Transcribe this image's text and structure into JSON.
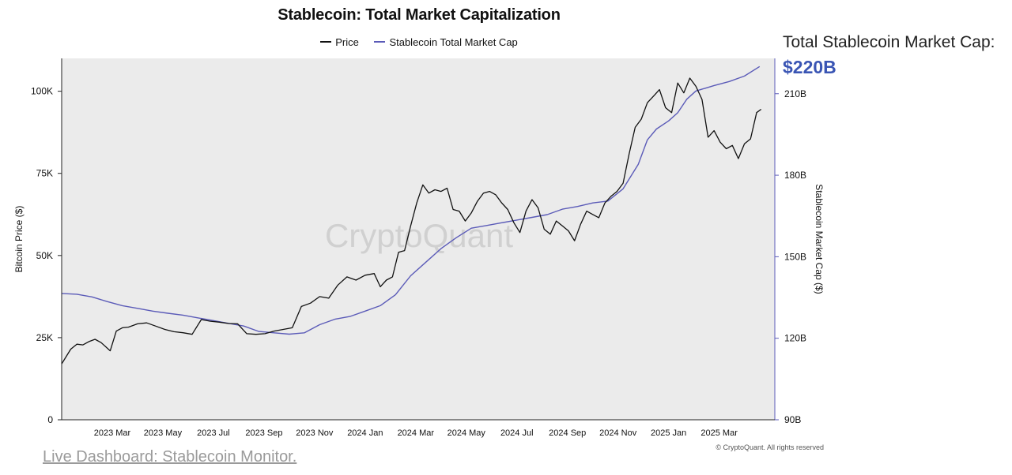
{
  "header": {
    "title": "Stablecoin: Total Market Capitalization",
    "legend": [
      {
        "label": "Price",
        "color": "#111111"
      },
      {
        "label": "Stablecoin Total Market Cap",
        "color": "#5b5bb8"
      }
    ]
  },
  "callout": {
    "label": "Total Stablecoin Market Cap:",
    "value": "$220B",
    "color": "#3a55b4"
  },
  "watermark": "CryptoQuant",
  "copyright": "© CryptoQuant. All rights reserved",
  "footer_link": "Live Dashboard: Stablecoin Monitor.",
  "chart_data": {
    "type": "line",
    "xlim": [
      2023.0,
      2025.35
    ],
    "x_ticks": [
      {
        "value": 2023.1667,
        "label": "2023 Mar"
      },
      {
        "value": 2023.3333,
        "label": "2023 May"
      },
      {
        "value": 2023.5,
        "label": "2023 Jul"
      },
      {
        "value": 2023.6667,
        "label": "2023 Sep"
      },
      {
        "value": 2023.8333,
        "label": "2023 Nov"
      },
      {
        "value": 2024.0,
        "label": "2024 Jan"
      },
      {
        "value": 2024.1667,
        "label": "2024 Mar"
      },
      {
        "value": 2024.3333,
        "label": "2024 May"
      },
      {
        "value": 2024.5,
        "label": "2024 Jul"
      },
      {
        "value": 2024.6667,
        "label": "2024 Sep"
      },
      {
        "value": 2024.8333,
        "label": "2024 Nov"
      },
      {
        "value": 2025.0,
        "label": "2025 Jan"
      },
      {
        "value": 2025.1667,
        "label": "2025 Mar"
      }
    ],
    "y_left": {
      "label": "Bitcoin Price ($)",
      "ylim": [
        0,
        110000
      ],
      "ticks": [
        {
          "value": 0,
          "label": "0"
        },
        {
          "value": 25000,
          "label": "25K"
        },
        {
          "value": 50000,
          "label": "50K"
        },
        {
          "value": 75000,
          "label": "75K"
        },
        {
          "value": 100000,
          "label": "100K"
        }
      ]
    },
    "y_right": {
      "label": "Stablecoin Market Cap ($)",
      "ylim": [
        90,
        223
      ],
      "ticks": [
        {
          "value": 90,
          "label": "90B"
        },
        {
          "value": 120,
          "label": "120B"
        },
        {
          "value": 150,
          "label": "150B"
        },
        {
          "value": 180,
          "label": "180B"
        },
        {
          "value": 210,
          "label": "210B"
        }
      ]
    },
    "series": [
      {
        "name": "Price",
        "axis": "left",
        "color": "#111111",
        "points": [
          [
            2023.0,
            17000
          ],
          [
            2023.01,
            18500
          ],
          [
            2023.03,
            21500
          ],
          [
            2023.05,
            23000
          ],
          [
            2023.07,
            22800
          ],
          [
            2023.09,
            23800
          ],
          [
            2023.11,
            24500
          ],
          [
            2023.13,
            23500
          ],
          [
            2023.16,
            21000
          ],
          [
            2023.18,
            27000
          ],
          [
            2023.2,
            28000
          ],
          [
            2023.22,
            28200
          ],
          [
            2023.25,
            29200
          ],
          [
            2023.28,
            29500
          ],
          [
            2023.31,
            28500
          ],
          [
            2023.34,
            27500
          ],
          [
            2023.37,
            26800
          ],
          [
            2023.4,
            26500
          ],
          [
            2023.43,
            26000
          ],
          [
            2023.46,
            30500
          ],
          [
            2023.49,
            30000
          ],
          [
            2023.52,
            29700
          ],
          [
            2023.55,
            29300
          ],
          [
            2023.58,
            29200
          ],
          [
            2023.61,
            26200
          ],
          [
            2023.64,
            26000
          ],
          [
            2023.67,
            26200
          ],
          [
            2023.7,
            27000
          ],
          [
            2023.73,
            27500
          ],
          [
            2023.76,
            28000
          ],
          [
            2023.79,
            34500
          ],
          [
            2023.82,
            35500
          ],
          [
            2023.85,
            37500
          ],
          [
            2023.88,
            37000
          ],
          [
            2023.91,
            41000
          ],
          [
            2023.94,
            43500
          ],
          [
            2023.97,
            42500
          ],
          [
            2024.0,
            44000
          ],
          [
            2024.03,
            44500
          ],
          [
            2024.05,
            40500
          ],
          [
            2024.07,
            42500
          ],
          [
            2024.09,
            43500
          ],
          [
            2024.11,
            51000
          ],
          [
            2024.13,
            51500
          ],
          [
            2024.15,
            59000
          ],
          [
            2024.17,
            66000
          ],
          [
            2024.19,
            71500
          ],
          [
            2024.21,
            69000
          ],
          [
            2024.23,
            70000
          ],
          [
            2024.25,
            69500
          ],
          [
            2024.27,
            70500
          ],
          [
            2024.29,
            64000
          ],
          [
            2024.31,
            63500
          ],
          [
            2024.33,
            60500
          ],
          [
            2024.35,
            63000
          ],
          [
            2024.37,
            66500
          ],
          [
            2024.39,
            69000
          ],
          [
            2024.41,
            69500
          ],
          [
            2024.43,
            68500
          ],
          [
            2024.45,
            66000
          ],
          [
            2024.47,
            64000
          ],
          [
            2024.49,
            60000
          ],
          [
            2024.51,
            57000
          ],
          [
            2024.53,
            63500
          ],
          [
            2024.55,
            67000
          ],
          [
            2024.57,
            64500
          ],
          [
            2024.59,
            58000
          ],
          [
            2024.61,
            56500
          ],
          [
            2024.63,
            60500
          ],
          [
            2024.65,
            59000
          ],
          [
            2024.67,
            57500
          ],
          [
            2024.69,
            54500
          ],
          [
            2024.71,
            59500
          ],
          [
            2024.73,
            63500
          ],
          [
            2024.75,
            62500
          ],
          [
            2024.77,
            61500
          ],
          [
            2024.79,
            66000
          ],
          [
            2024.81,
            68000
          ],
          [
            2024.83,
            69500
          ],
          [
            2024.85,
            72000
          ],
          [
            2024.87,
            81000
          ],
          [
            2024.89,
            89000
          ],
          [
            2024.91,
            91500
          ],
          [
            2024.93,
            96500
          ],
          [
            2024.95,
            98500
          ],
          [
            2024.97,
            100500
          ],
          [
            2024.99,
            95000
          ],
          [
            2025.01,
            93500
          ],
          [
            2025.03,
            102500
          ],
          [
            2025.05,
            99500
          ],
          [
            2025.07,
            104000
          ],
          [
            2025.09,
            101500
          ],
          [
            2025.11,
            97500
          ],
          [
            2025.13,
            86000
          ],
          [
            2025.15,
            88000
          ],
          [
            2025.17,
            84500
          ],
          [
            2025.19,
            82500
          ],
          [
            2025.21,
            83500
          ],
          [
            2025.23,
            79500
          ],
          [
            2025.25,
            84000
          ],
          [
            2025.27,
            85500
          ],
          [
            2025.29,
            93500
          ],
          [
            2025.305,
            94500
          ]
        ]
      },
      {
        "name": "Stablecoin Total Market Cap",
        "axis": "right",
        "color": "#5b5bb8",
        "points": [
          [
            2023.0,
            136.5
          ],
          [
            2023.05,
            136.2
          ],
          [
            2023.1,
            135.2
          ],
          [
            2023.15,
            133.5
          ],
          [
            2023.2,
            132.0
          ],
          [
            2023.25,
            131.0
          ],
          [
            2023.3,
            130.0
          ],
          [
            2023.35,
            129.2
          ],
          [
            2023.4,
            128.5
          ],
          [
            2023.45,
            127.5
          ],
          [
            2023.5,
            126.5
          ],
          [
            2023.55,
            125.5
          ],
          [
            2023.6,
            124.5
          ],
          [
            2023.65,
            122.5
          ],
          [
            2023.7,
            122.0
          ],
          [
            2023.75,
            121.5
          ],
          [
            2023.8,
            122.0
          ],
          [
            2023.85,
            125.0
          ],
          [
            2023.9,
            127.0
          ],
          [
            2023.95,
            128.0
          ],
          [
            2024.0,
            130.0
          ],
          [
            2024.05,
            132.0
          ],
          [
            2024.1,
            136.0
          ],
          [
            2024.15,
            143.0
          ],
          [
            2024.2,
            148.0
          ],
          [
            2024.25,
            153.0
          ],
          [
            2024.3,
            157.0
          ],
          [
            2024.35,
            160.5
          ],
          [
            2024.4,
            161.5
          ],
          [
            2024.45,
            162.5
          ],
          [
            2024.5,
            163.5
          ],
          [
            2024.55,
            164.5
          ],
          [
            2024.6,
            165.5
          ],
          [
            2024.65,
            167.5
          ],
          [
            2024.7,
            168.5
          ],
          [
            2024.75,
            169.8
          ],
          [
            2024.8,
            170.5
          ],
          [
            2024.85,
            175.0
          ],
          [
            2024.9,
            184.0
          ],
          [
            2024.93,
            193.0
          ],
          [
            2024.96,
            197.0
          ],
          [
            2025.0,
            200.0
          ],
          [
            2025.03,
            203.0
          ],
          [
            2025.06,
            208.0
          ],
          [
            2025.09,
            211.0
          ],
          [
            2025.12,
            212.0
          ],
          [
            2025.15,
            213.0
          ],
          [
            2025.2,
            214.5
          ],
          [
            2025.25,
            216.5
          ],
          [
            2025.3,
            220.0
          ]
        ]
      }
    ]
  }
}
